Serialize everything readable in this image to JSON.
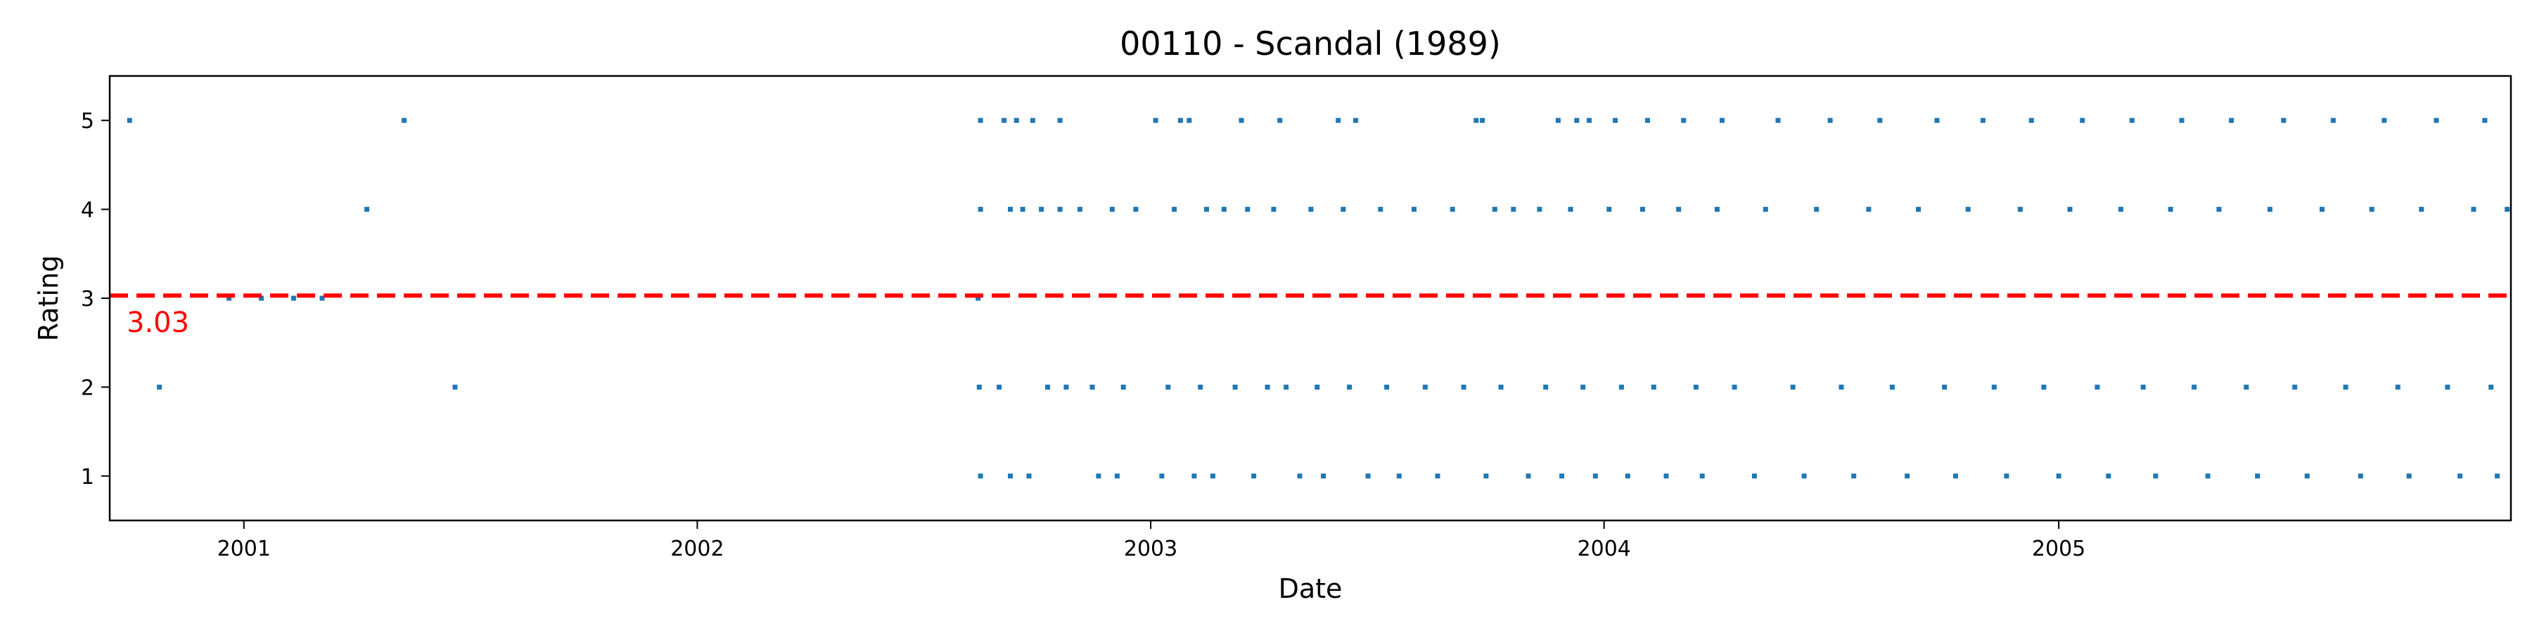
{
  "chart_data": {
    "type": "scatter",
    "title": "00110 - Scandal (1989)",
    "xlabel": "Date",
    "ylabel": "Rating",
    "x_type": "date",
    "xlim": [
      "2000-09-15",
      "2005-12-31"
    ],
    "ylim": [
      0.5,
      5.5
    ],
    "x_ticks": [
      "2001",
      "2002",
      "2003",
      "2004",
      "2005"
    ],
    "y_ticks": [
      "1",
      "2",
      "3",
      "4",
      "5"
    ],
    "grid": false,
    "legend": "none",
    "point_color": "#1f77b4",
    "mean_line": {
      "value": 3.03,
      "label": "3.03",
      "color": "#ff0000",
      "style": "dashed"
    },
    "series": [
      {
        "points": [
          [
            "2000-10-01",
            5
          ],
          [
            "2000-10-25",
            2
          ],
          [
            "2000-12-20",
            3
          ],
          [
            "2001-01-15",
            3
          ],
          [
            "2001-02-10",
            3
          ],
          [
            "2001-03-05",
            3
          ],
          [
            "2001-04-10",
            4
          ],
          [
            "2001-05-10",
            5
          ],
          [
            "2001-06-20",
            2
          ],
          [
            "2002-08-15",
            3
          ],
          [
            "2002-08-17",
            5
          ],
          [
            "2002-08-17",
            4
          ],
          [
            "2002-08-16",
            2
          ],
          [
            "2002-08-17",
            1
          ],
          [
            "2002-09-05",
            5
          ],
          [
            "2002-09-15",
            5
          ],
          [
            "2002-09-10",
            4
          ],
          [
            "2002-09-20",
            4
          ],
          [
            "2002-09-01",
            2
          ],
          [
            "2002-09-10",
            1
          ],
          [
            "2002-09-25",
            1
          ],
          [
            "2002-09-28",
            5
          ],
          [
            "2002-10-05",
            4
          ],
          [
            "2002-10-10",
            2
          ],
          [
            "2002-10-20",
            5
          ],
          [
            "2002-10-20",
            4
          ],
          [
            "2002-10-25",
            2
          ],
          [
            "2002-11-05",
            4
          ],
          [
            "2002-11-15",
            2
          ],
          [
            "2002-11-20",
            1
          ],
          [
            "2002-12-01",
            4
          ],
          [
            "2002-12-05",
            1
          ],
          [
            "2002-12-10",
            2
          ],
          [
            "2002-12-20",
            4
          ],
          [
            "2003-01-05",
            5
          ],
          [
            "2003-01-10",
            1
          ],
          [
            "2003-01-15",
            2
          ],
          [
            "2003-01-20",
            4
          ],
          [
            "2003-01-25",
            5
          ],
          [
            "2003-02-01",
            5
          ],
          [
            "2003-02-05",
            1
          ],
          [
            "2003-02-10",
            2
          ],
          [
            "2003-02-15",
            4
          ],
          [
            "2003-02-20",
            1
          ],
          [
            "2003-03-01",
            4
          ],
          [
            "2003-03-10",
            2
          ],
          [
            "2003-03-15",
            5
          ],
          [
            "2003-03-20",
            4
          ],
          [
            "2003-03-25",
            1
          ],
          [
            "2003-04-05",
            2
          ],
          [
            "2003-04-10",
            4
          ],
          [
            "2003-04-15",
            5
          ],
          [
            "2003-04-20",
            2
          ],
          [
            "2003-05-01",
            1
          ],
          [
            "2003-05-10",
            4
          ],
          [
            "2003-05-15",
            2
          ],
          [
            "2003-05-20",
            1
          ],
          [
            "2003-06-01",
            5
          ],
          [
            "2003-06-05",
            4
          ],
          [
            "2003-06-10",
            2
          ],
          [
            "2003-06-15",
            5
          ],
          [
            "2003-06-25",
            1
          ],
          [
            "2003-07-05",
            4
          ],
          [
            "2003-07-10",
            2
          ],
          [
            "2003-07-20",
            1
          ],
          [
            "2003-08-01",
            4
          ],
          [
            "2003-08-10",
            2
          ],
          [
            "2003-08-20",
            1
          ],
          [
            "2003-09-01",
            4
          ],
          [
            "2003-09-10",
            2
          ],
          [
            "2003-09-20",
            5
          ],
          [
            "2003-09-25",
            5
          ],
          [
            "2003-09-28",
            1
          ],
          [
            "2003-10-05",
            4
          ],
          [
            "2003-10-10",
            2
          ],
          [
            "2003-10-20",
            4
          ],
          [
            "2003-11-01",
            1
          ],
          [
            "2003-11-10",
            4
          ],
          [
            "2003-11-15",
            2
          ],
          [
            "2003-11-25",
            5
          ],
          [
            "2003-11-28",
            1
          ],
          [
            "2003-12-05",
            4
          ],
          [
            "2003-12-10",
            5
          ],
          [
            "2003-12-15",
            2
          ],
          [
            "2003-12-20",
            5
          ],
          [
            "2003-12-25",
            1
          ],
          [
            "2004-01-05",
            4
          ],
          [
            "2004-01-10",
            5
          ],
          [
            "2004-01-15",
            2
          ],
          [
            "2004-01-20",
            1
          ],
          [
            "2004-02-01",
            4
          ],
          [
            "2004-02-05",
            5
          ],
          [
            "2004-02-10",
            2
          ],
          [
            "2004-02-20",
            1
          ],
          [
            "2004-03-01",
            4
          ],
          [
            "2004-03-05",
            5
          ],
          [
            "2004-03-15",
            2
          ],
          [
            "2004-03-20",
            1
          ],
          [
            "2004-04-01",
            4
          ],
          [
            "2004-04-05",
            5
          ],
          [
            "2004-04-15",
            2
          ],
          [
            "2004-05-01",
            1
          ],
          [
            "2004-05-10",
            4
          ],
          [
            "2004-05-20",
            5
          ],
          [
            "2004-06-01",
            2
          ],
          [
            "2004-06-10",
            1
          ],
          [
            "2004-06-20",
            4
          ],
          [
            "2004-07-01",
            5
          ],
          [
            "2004-07-10",
            2
          ],
          [
            "2004-07-20",
            1
          ],
          [
            "2004-08-01",
            4
          ],
          [
            "2004-08-10",
            5
          ],
          [
            "2004-08-20",
            2
          ],
          [
            "2004-09-01",
            1
          ],
          [
            "2004-09-10",
            4
          ],
          [
            "2004-09-25",
            5
          ],
          [
            "2004-10-01",
            2
          ],
          [
            "2004-10-10",
            1
          ],
          [
            "2004-10-20",
            4
          ],
          [
            "2004-11-01",
            5
          ],
          [
            "2004-11-10",
            2
          ],
          [
            "2004-11-20",
            1
          ],
          [
            "2004-12-01",
            4
          ],
          [
            "2004-12-10",
            5
          ],
          [
            "2004-12-20",
            2
          ],
          [
            "2005-01-01",
            1
          ],
          [
            "2005-01-10",
            4
          ],
          [
            "2005-01-20",
            5
          ],
          [
            "2005-02-01",
            2
          ],
          [
            "2005-02-10",
            1
          ],
          [
            "2005-02-20",
            4
          ],
          [
            "2005-03-01",
            5
          ],
          [
            "2005-03-10",
            2
          ],
          [
            "2005-03-20",
            1
          ],
          [
            "2005-04-01",
            4
          ],
          [
            "2005-04-10",
            5
          ],
          [
            "2005-04-20",
            2
          ],
          [
            "2005-05-01",
            1
          ],
          [
            "2005-05-10",
            4
          ],
          [
            "2005-05-20",
            5
          ],
          [
            "2005-06-01",
            2
          ],
          [
            "2005-06-10",
            1
          ],
          [
            "2005-06-20",
            4
          ],
          [
            "2005-07-01",
            5
          ],
          [
            "2005-07-10",
            2
          ],
          [
            "2005-07-20",
            1
          ],
          [
            "2005-08-01",
            4
          ],
          [
            "2005-08-10",
            5
          ],
          [
            "2005-08-20",
            2
          ],
          [
            "2005-09-01",
            1
          ],
          [
            "2005-09-10",
            4
          ],
          [
            "2005-09-20",
            5
          ],
          [
            "2005-10-01",
            2
          ],
          [
            "2005-10-10",
            1
          ],
          [
            "2005-10-20",
            4
          ],
          [
            "2005-11-01",
            5
          ],
          [
            "2005-11-10",
            2
          ],
          [
            "2005-11-20",
            1
          ],
          [
            "2005-12-01",
            4
          ],
          [
            "2005-12-10",
            5
          ],
          [
            "2005-12-15",
            2
          ],
          [
            "2005-12-20",
            1
          ],
          [
            "2005-12-28",
            4
          ]
        ]
      }
    ]
  }
}
